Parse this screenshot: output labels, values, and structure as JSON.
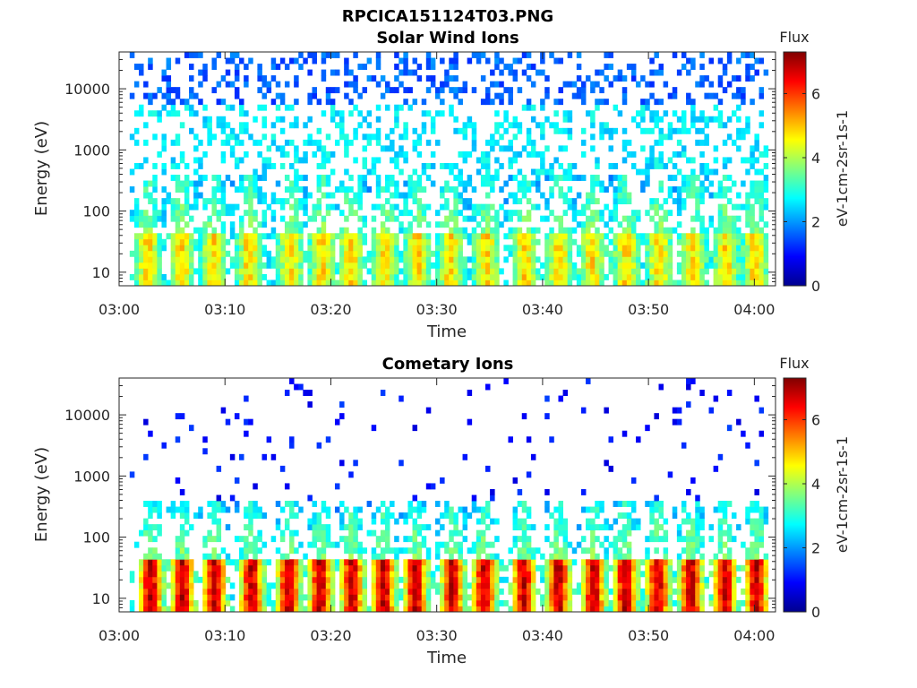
{
  "figure": {
    "title": "RPCICA151124T03.PNG"
  },
  "chart_data": [
    {
      "type": "heatmap",
      "title": "Solar Wind Ions",
      "xlabel": "Time",
      "ylabel": "Energy (eV)",
      "x_ticks": [
        "03:00",
        "03:10",
        "03:20",
        "03:30",
        "03:40",
        "03:50",
        "04:00"
      ],
      "x_range_minutes": [
        0,
        62
      ],
      "y_scale": "log",
      "y_ticks": [
        10,
        100,
        1000,
        10000
      ],
      "y_tick_labels": [
        "10",
        "100",
        "1000",
        "10000"
      ],
      "ylim": [
        6,
        40000
      ],
      "colorbar": {
        "title": "Flux",
        "label": "eV-1cm-2sr-1s-1",
        "ticks": [
          0,
          2,
          4,
          6
        ],
        "range": [
          0,
          7.3
        ],
        "colormap": "jet"
      },
      "bursts_minute": [
        2.7,
        5.9,
        8.9,
        12.3,
        16.2,
        19.2,
        21.9,
        25.1,
        28.2,
        31.3,
        34.7,
        38.3,
        41.6,
        44.7,
        47.9,
        51.0,
        54.2,
        57.3,
        60.1
      ],
      "low_energy_peak_flux": 4.8,
      "background_flux": 2.6,
      "high_energy_sparse_flux": 1.0
    },
    {
      "type": "heatmap",
      "title": "Cometary Ions",
      "xlabel": "Time",
      "ylabel": "Energy (eV)",
      "x_ticks": [
        "03:00",
        "03:10",
        "03:20",
        "03:30",
        "03:40",
        "03:50",
        "04:00"
      ],
      "x_range_minutes": [
        0,
        62
      ],
      "y_scale": "log",
      "y_ticks": [
        10,
        100,
        1000,
        10000
      ],
      "y_tick_labels": [
        "10",
        "100",
        "1000",
        "10000"
      ],
      "ylim": [
        6,
        40000
      ],
      "colorbar": {
        "title": "Flux",
        "label": "eV-1cm-2sr-1s-1",
        "ticks": [
          0,
          2,
          4,
          6
        ],
        "range": [
          0,
          7.3
        ],
        "colormap": "jet"
      },
      "bursts_minute": [
        3.0,
        6.0,
        9.0,
        12.5,
        16.0,
        19.0,
        22.0,
        25.0,
        28.0,
        31.5,
        34.5,
        38.2,
        41.5,
        44.8,
        47.8,
        50.9,
        54.0,
        57.2,
        60.2
      ],
      "low_energy_peak_flux": 6.8,
      "background_flux": 2.5,
      "high_energy_sparse_flux": 1.0
    }
  ]
}
